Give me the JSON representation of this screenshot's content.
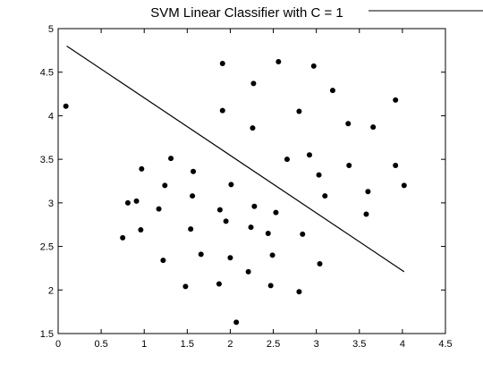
{
  "chart_data": {
    "type": "scatter",
    "title": "SVM Linear Classifier with C = 1",
    "xlabel": "",
    "ylabel": "",
    "xlim": [
      0,
      4.5
    ],
    "ylim": [
      1.5,
      5
    ],
    "x_ticks": [
      "0",
      "0.5",
      "1",
      "1.5",
      "2",
      "2.5",
      "3",
      "3.5",
      "4",
      "4.5"
    ],
    "y_ticks": [
      "1.5",
      "2",
      "2.5",
      "3",
      "3.5",
      "4",
      "4.5",
      "5"
    ],
    "grid": false,
    "points": [
      [
        0.09,
        4.11
      ],
      [
        1.91,
        4.6
      ],
      [
        2.56,
        4.62
      ],
      [
        2.97,
        4.57
      ],
      [
        2.27,
        4.37
      ],
      [
        3.19,
        4.29
      ],
      [
        1.91,
        4.06
      ],
      [
        2.8,
        4.05
      ],
      [
        3.92,
        4.18
      ],
      [
        2.26,
        3.86
      ],
      [
        3.37,
        3.91
      ],
      [
        3.66,
        3.87
      ],
      [
        2.66,
        3.5
      ],
      [
        2.92,
        3.55
      ],
      [
        3.38,
        3.43
      ],
      [
        3.92,
        3.43
      ],
      [
        3.03,
        3.32
      ],
      [
        3.6,
        3.13
      ],
      [
        4.02,
        3.2
      ],
      [
        3.1,
        3.08
      ],
      [
        3.58,
        2.87
      ],
      [
        0.97,
        3.39
      ],
      [
        1.31,
        3.51
      ],
      [
        1.57,
        3.36
      ],
      [
        1.24,
        3.2
      ],
      [
        0.81,
        3.0
      ],
      [
        0.91,
        3.02
      ],
      [
        1.56,
        3.08
      ],
      [
        2.01,
        3.21
      ],
      [
        1.17,
        2.93
      ],
      [
        1.88,
        2.92
      ],
      [
        2.28,
        2.96
      ],
      [
        1.95,
        2.79
      ],
      [
        2.53,
        2.89
      ],
      [
        0.96,
        2.69
      ],
      [
        1.54,
        2.7
      ],
      [
        2.24,
        2.72
      ],
      [
        2.44,
        2.65
      ],
      [
        2.84,
        2.64
      ],
      [
        0.75,
        2.6
      ],
      [
        1.66,
        2.41
      ],
      [
        1.22,
        2.34
      ],
      [
        2.0,
        2.37
      ],
      [
        2.49,
        2.4
      ],
      [
        3.04,
        2.3
      ],
      [
        2.21,
        2.21
      ],
      [
        1.48,
        2.04
      ],
      [
        1.87,
        2.07
      ],
      [
        2.47,
        2.05
      ],
      [
        2.8,
        1.98
      ],
      [
        2.07,
        1.63
      ]
    ],
    "decision_boundary": {
      "x": [
        0.1,
        4.02
      ],
      "y": [
        4.8,
        2.21
      ]
    }
  }
}
